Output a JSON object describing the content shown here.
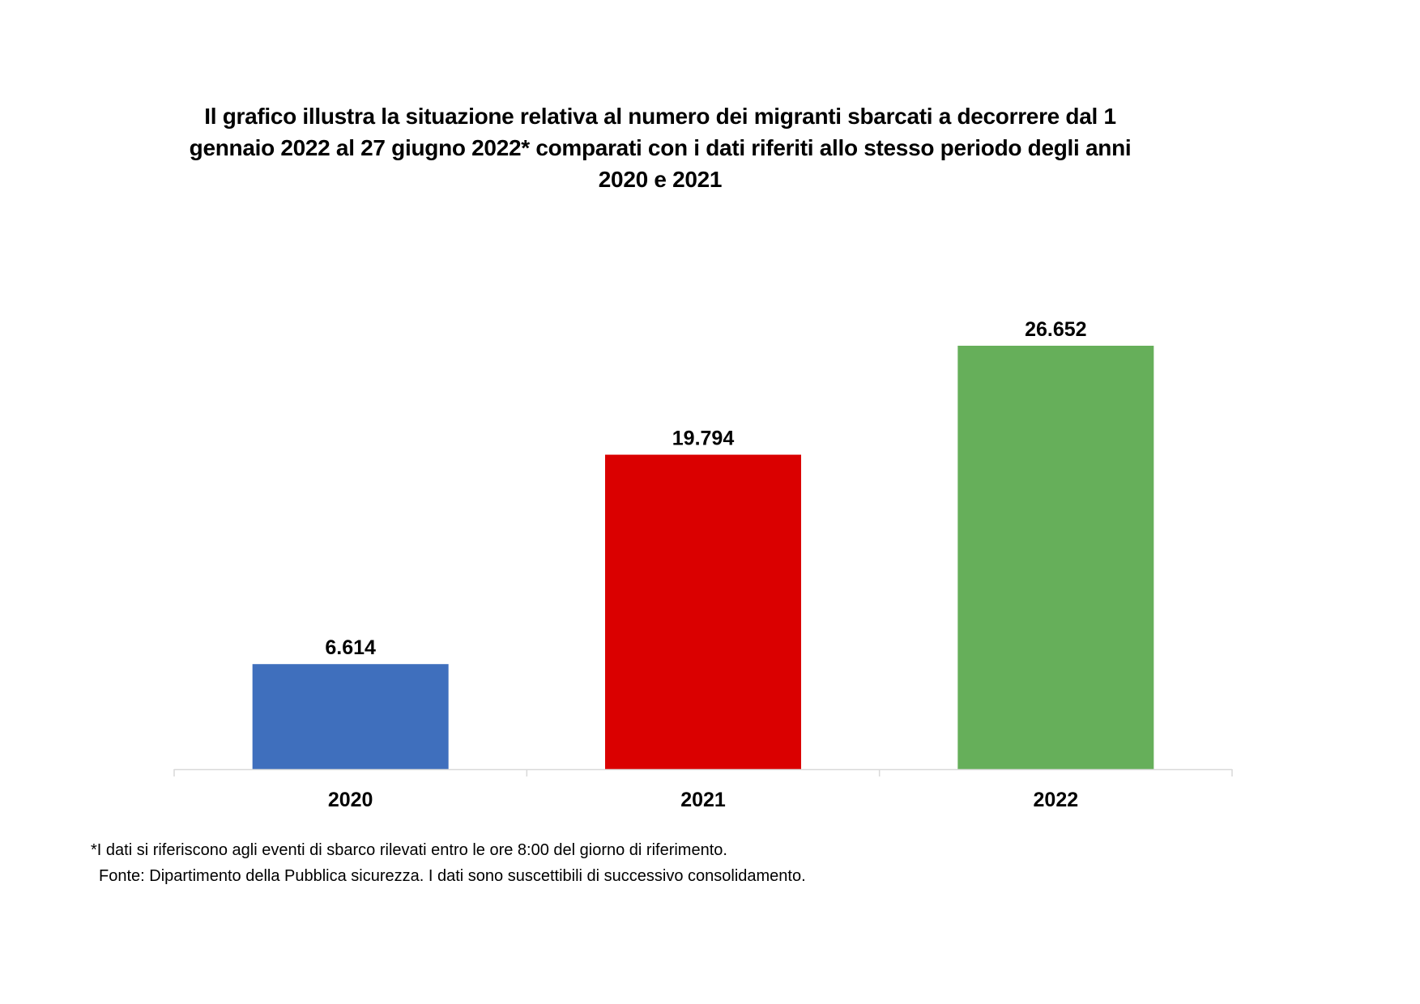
{
  "chart_data": {
    "type": "bar",
    "title": "Il grafico illustra la situazione relativa al numero dei migranti sbarcati a decorrere dal 1 gennaio 2022 al 27 giugno 2022* comparati con i dati riferiti allo stesso periodo degli anni 2020 e 2021",
    "categories": [
      "2020",
      "2021",
      "2022"
    ],
    "values": [
      6614,
      19794,
      26652
    ],
    "data_labels": [
      "6.614",
      "19.794",
      "26.652"
    ],
    "colors": [
      "#3F6FBD",
      "#DA0000",
      "#66AF5A"
    ],
    "xlabel": "",
    "ylabel": "",
    "ylim": [
      0,
      26652
    ],
    "grid": false,
    "legend": "none"
  },
  "footnotes": {
    "note": "*I dati si riferiscono agli eventi di sbarco rilevati entro le ore 8:00 del giorno di riferimento.",
    "source": "Fonte: Dipartimento della Pubblica sicurezza. I dati sono suscettibili di successivo consolidamento."
  }
}
